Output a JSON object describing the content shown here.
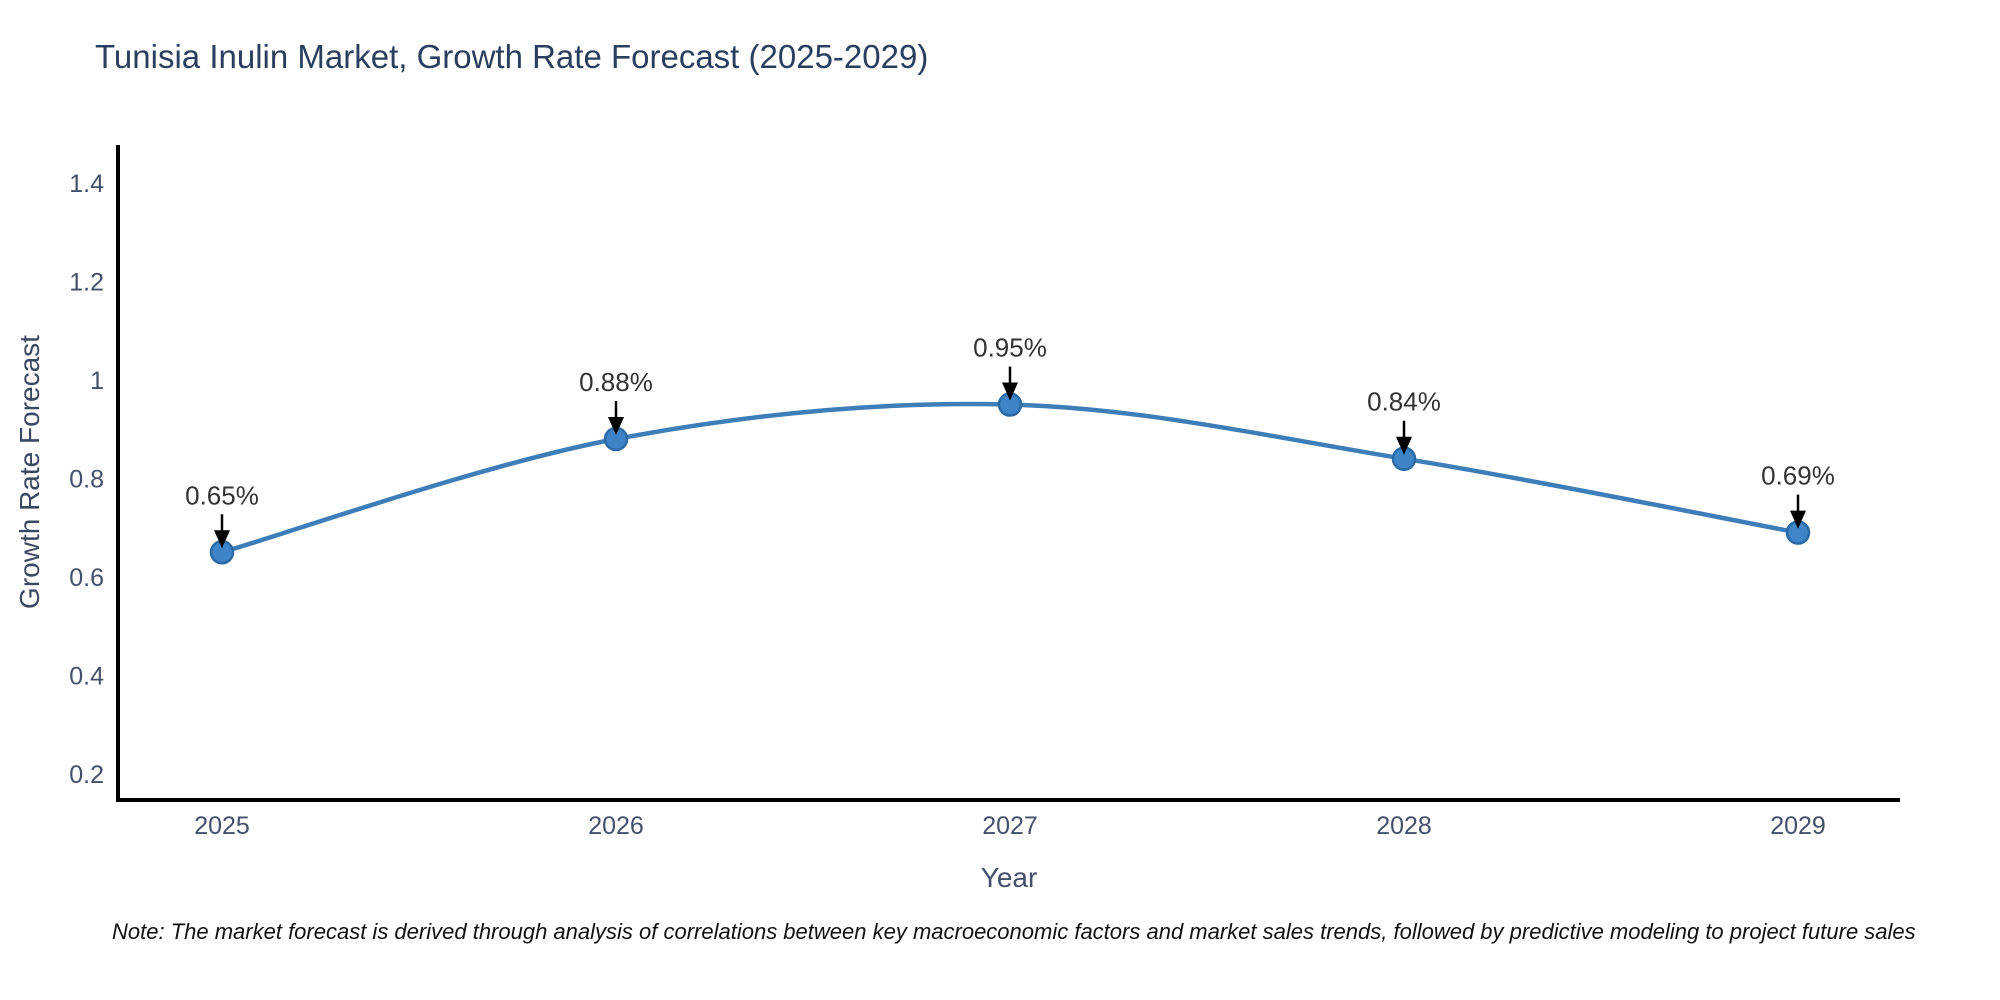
{
  "header": {
    "title": "Tunisia Inulin Market, Growth Rate Forecast (2025-2029)"
  },
  "footer": {
    "note": "Note: The market forecast is derived through analysis of correlations between key macroeconomic factors and market sales trends, followed by predictive modeling to project future sales"
  },
  "chart_data": {
    "type": "line",
    "title": "Tunisia Inulin Market, Growth Rate Forecast (2025-2029)",
    "categories": [
      "2025",
      "2026",
      "2027",
      "2028",
      "2029"
    ],
    "series": [
      {
        "name": "Growth Rate Forecast",
        "values": [
          0.65,
          0.88,
          0.95,
          0.84,
          0.69
        ]
      }
    ],
    "point_labels": [
      "0.65%",
      "0.88%",
      "0.95%",
      "0.84%",
      "0.69%"
    ],
    "xlabel": "Year",
    "ylabel": "Growth Rate Forecast",
    "ylim": [
      0.147,
      1.477
    ],
    "yticks": [
      1.4,
      1.2,
      1,
      0.8,
      0.6,
      0.4,
      0.2
    ],
    "ytick_labels": [
      "1.4",
      "1.2",
      "1",
      "0.8",
      "0.6",
      "0.4",
      "0.2"
    ],
    "grid": false,
    "legend": "none",
    "smooth": true,
    "annotation_style": "down-arrow-to-point"
  },
  "colors": {
    "line": "#3d7db8",
    "marker_fill": "#3e84c6",
    "marker_edge": "#2a6aa5",
    "axis": "#000000",
    "tick_text": "#44506b",
    "annotation_text": "#333333",
    "arrow": "#000000",
    "background": "#ffffff"
  }
}
